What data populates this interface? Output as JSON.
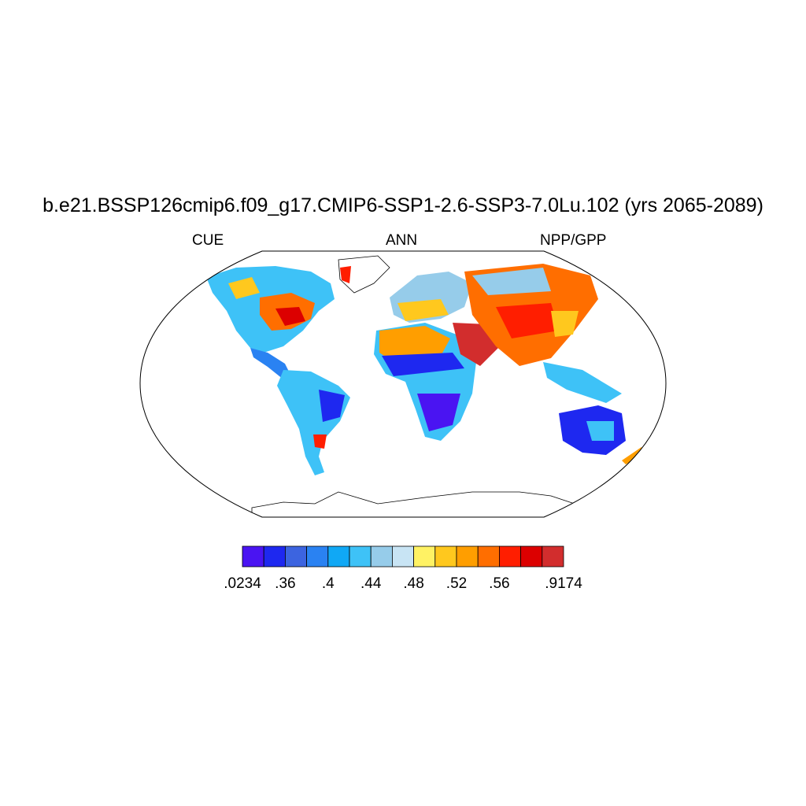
{
  "title": "b.e21.BSSP126cmip6.f09_g17.CMIP6-SSP1-2.6-SSP3-7.0Lu.102 (yrs 2065-2089)",
  "subtitle_left": "CUE",
  "subtitle_center": "ANN",
  "subtitle_right": "NPP/GPP",
  "colorbar": {
    "colors": [
      "#4a14f2",
      "#1e28f0",
      "#3c64e0",
      "#2a82f2",
      "#10a8f5",
      "#3ec2f7",
      "#96ccea",
      "#c8e4f4",
      "#fff264",
      "#ffc81e",
      "#ff9e00",
      "#ff6e00",
      "#ff1e00",
      "#dc0000",
      "#d22d2d"
    ],
    "labels": [
      ".0234",
      ".36",
      ".4",
      ".44",
      ".48",
      ".52",
      ".56",
      ".9174"
    ],
    "label_boundaries": [
      0,
      2,
      4,
      6,
      8,
      10,
      12,
      15
    ]
  }
}
